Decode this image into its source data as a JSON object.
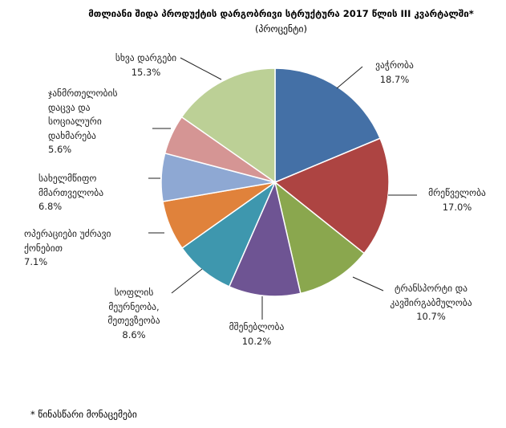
{
  "chart_data": {
    "type": "pie",
    "title": "მთლიანი შიდა პროდუქტის დარგობრივი სტრუქტურა 2017 წლის III კვარტალში*",
    "subtitle": "(პროცენტი)",
    "footnote": "* წინასწარი მონაცემები",
    "categories": [
      "ვაჭრობა",
      "მრეწველობა",
      "ტრანსპორტი და კავშირგაბმულობა",
      "მშენებლობა",
      "სოფლის მეურნეობა, მეთევზეობა",
      "ოპერაციები უძრავი ქონებით",
      "სახელმწიფო მმართველობა",
      "ჯანმრთელობის დაცვა და სოციალური დახმარება",
      "სხვა დარგები"
    ],
    "values": [
      18.7,
      17.0,
      10.7,
      10.2,
      8.6,
      7.1,
      6.8,
      5.6,
      15.3
    ],
    "value_labels": [
      "18.7%",
      "17.0%",
      "10.7%",
      "10.2%",
      "8.6%",
      "7.1%",
      "6.8%",
      "5.6%",
      "15.3%"
    ],
    "colors": [
      "#4470a6",
      "#ad4442",
      "#8aa74e",
      "#6e5493",
      "#3e97ae",
      "#e0823b",
      "#8ea8d3",
      "#d59594",
      "#bcd096"
    ]
  }
}
